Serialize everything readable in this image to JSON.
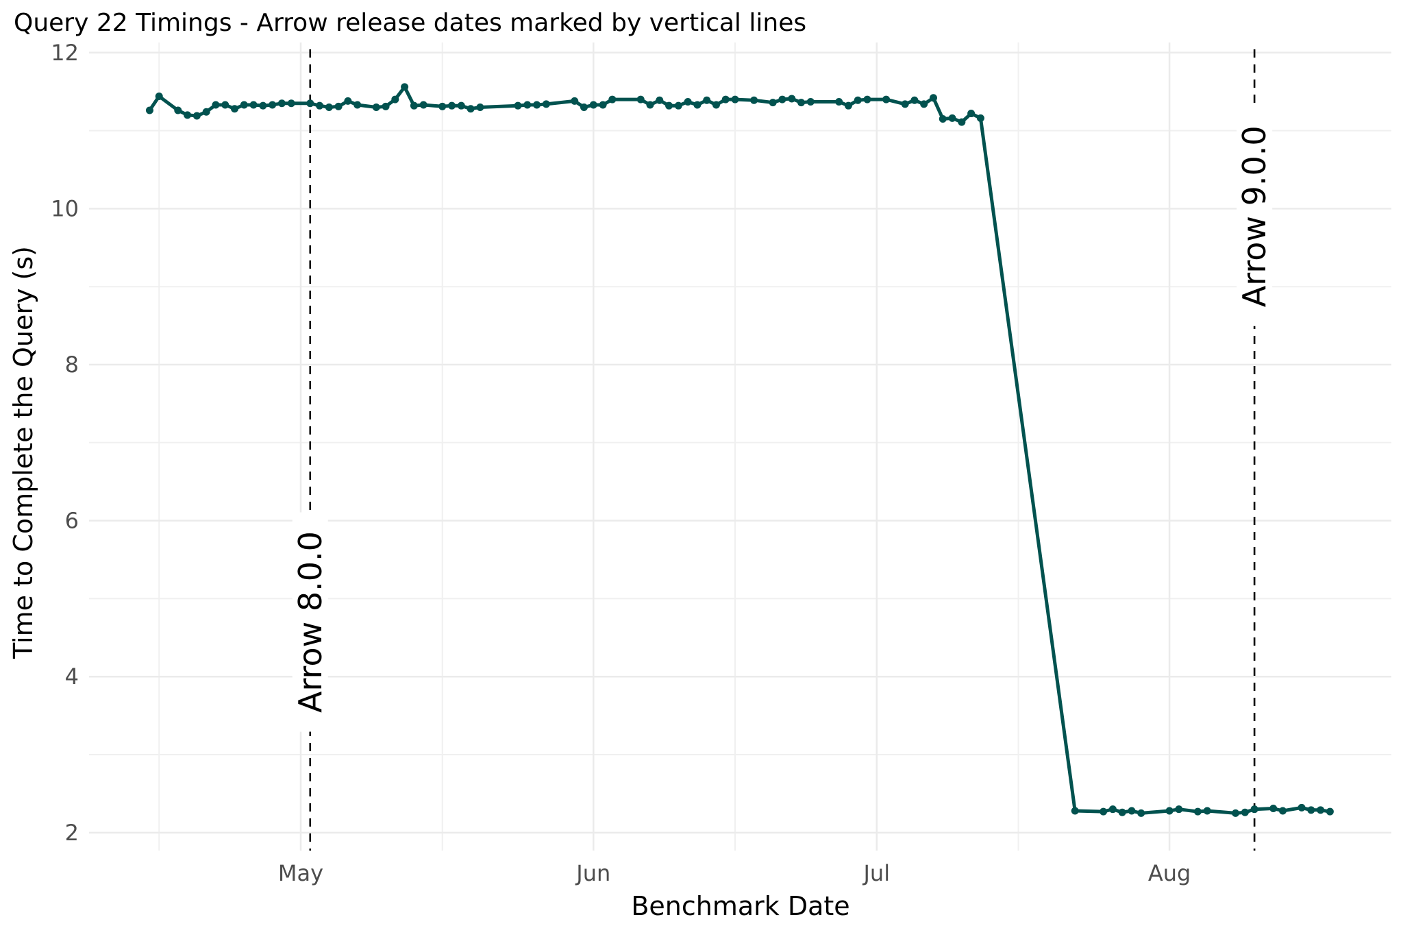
{
  "chart_data": {
    "type": "line",
    "title": "Query 22 Timings - Arrow release dates marked by vertical lines",
    "xlabel": "Benchmark Date",
    "ylabel": "Time to Complete the Query (s)",
    "xlim": [
      "2022-04-08T14:00",
      "2022-08-24T12:00"
    ],
    "ylim": [
      1.77,
      12.13
    ],
    "x_ticks": [
      {
        "date": "2022-05-01",
        "label": "May"
      },
      {
        "date": "2022-06-01",
        "label": "Jun"
      },
      {
        "date": "2022-07-01",
        "label": "Jul"
      },
      {
        "date": "2022-08-01",
        "label": "Aug"
      }
    ],
    "x_minor_ticks": [
      "2022-04-16",
      "2022-05-16",
      "2022-06-16",
      "2022-07-16"
    ],
    "y_ticks": [
      2,
      4,
      6,
      8,
      10,
      12
    ],
    "y_minor_ticks": [
      3,
      5,
      7,
      9,
      11
    ],
    "grid": true,
    "line_color": "#02524f",
    "series": [
      {
        "x": [
          "2022-04-15",
          "2022-04-16",
          "2022-04-18",
          "2022-04-19",
          "2022-04-20",
          "2022-04-21",
          "2022-04-22",
          "2022-04-23",
          "2022-04-24",
          "2022-04-25",
          "2022-04-26",
          "2022-04-27",
          "2022-04-28",
          "2022-04-29",
          "2022-04-30",
          "2022-05-02",
          "2022-05-03",
          "2022-05-04",
          "2022-05-05",
          "2022-05-06",
          "2022-05-07",
          "2022-05-09",
          "2022-05-10",
          "2022-05-11",
          "2022-05-12",
          "2022-05-13",
          "2022-05-14",
          "2022-05-16",
          "2022-05-17",
          "2022-05-18",
          "2022-05-19",
          "2022-05-20",
          "2022-05-24",
          "2022-05-25",
          "2022-05-26",
          "2022-05-27",
          "2022-05-30",
          "2022-05-31",
          "2022-06-01",
          "2022-06-02",
          "2022-06-03",
          "2022-06-06",
          "2022-06-07",
          "2022-06-08",
          "2022-06-09",
          "2022-06-10",
          "2022-06-11",
          "2022-06-12",
          "2022-06-13",
          "2022-06-14",
          "2022-06-15",
          "2022-06-16",
          "2022-06-18",
          "2022-06-20",
          "2022-06-21",
          "2022-06-22",
          "2022-06-23",
          "2022-06-24",
          "2022-06-27",
          "2022-06-28",
          "2022-06-29",
          "2022-06-30",
          "2022-07-02",
          "2022-07-04",
          "2022-07-05",
          "2022-07-06",
          "2022-07-07",
          "2022-07-08",
          "2022-07-09",
          "2022-07-10",
          "2022-07-11",
          "2022-07-12",
          "2022-07-22",
          "2022-07-25",
          "2022-07-26",
          "2022-07-27",
          "2022-07-28",
          "2022-07-29",
          "2022-08-01",
          "2022-08-02",
          "2022-08-04",
          "2022-08-05",
          "2022-08-08",
          "2022-08-09",
          "2022-08-10",
          "2022-08-12",
          "2022-08-13",
          "2022-08-15",
          "2022-08-16",
          "2022-08-17",
          "2022-08-18"
        ],
        "y": [
          11.26,
          11.44,
          11.26,
          11.2,
          11.19,
          11.24,
          11.33,
          11.33,
          11.28,
          11.33,
          11.33,
          11.32,
          11.33,
          11.35,
          11.35,
          11.35,
          11.32,
          11.3,
          11.31,
          11.38,
          11.33,
          11.3,
          11.31,
          11.4,
          11.56,
          11.32,
          11.33,
          11.31,
          11.32,
          11.32,
          11.28,
          11.3,
          11.32,
          11.33,
          11.33,
          11.34,
          11.38,
          11.3,
          11.33,
          11.33,
          11.4,
          11.4,
          11.33,
          11.39,
          11.32,
          11.32,
          11.37,
          11.33,
          11.39,
          11.33,
          11.4,
          11.4,
          11.39,
          11.36,
          11.4,
          11.41,
          11.36,
          11.37,
          11.37,
          11.32,
          11.39,
          11.4,
          11.4,
          11.34,
          11.39,
          11.34,
          11.42,
          11.15,
          11.16,
          11.11,
          11.22,
          11.16,
          2.28,
          2.27,
          2.3,
          2.26,
          2.28,
          2.25,
          2.28,
          2.3,
          2.27,
          2.28,
          2.25,
          2.26,
          2.3,
          2.31,
          2.28,
          2.32,
          2.29,
          2.29,
          2.27
        ]
      }
    ],
    "annotations": [
      {
        "date": "2022-05-02",
        "label": "Arrow 8.0.0",
        "label_y": 4.7
      },
      {
        "date": "2022-08-10",
        "label": "Arrow 9.0.0",
        "label_y": 9.9
      }
    ]
  }
}
